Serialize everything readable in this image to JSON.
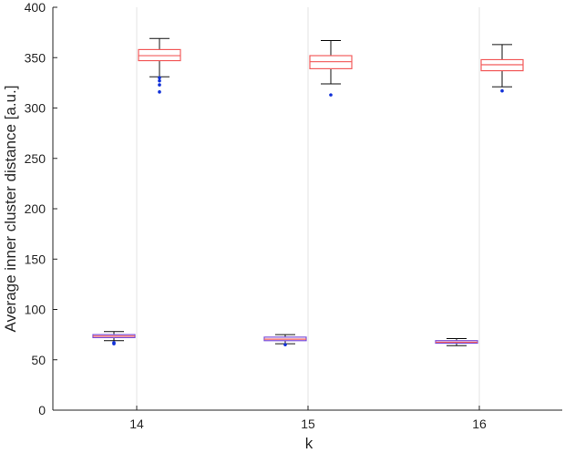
{
  "chart_data": {
    "type": "box",
    "title": "",
    "xlabel": "k",
    "ylabel": "Average inner cluster distance [a.u.]",
    "ylim": [
      0,
      400
    ],
    "yticks": [
      0,
      50,
      100,
      150,
      200,
      250,
      300,
      350,
      400
    ],
    "categories": [
      "14",
      "15",
      "16"
    ],
    "grid": "vertical lines at categories",
    "series": [
      {
        "color": "#7b4dd6",
        "boxes": [
          {
            "category": "14",
            "whisker_low": 69,
            "q1": 72,
            "median": 73.5,
            "q3": 75,
            "whisker_high": 78,
            "outliers": [
              66,
              67
            ]
          },
          {
            "category": "15",
            "whisker_low": 66,
            "q1": 69,
            "median": 70.5,
            "q3": 72.5,
            "whisker_high": 75,
            "outliers": [
              65
            ]
          },
          {
            "category": "16",
            "whisker_low": 64,
            "q1": 66.5,
            "median": 67.5,
            "q3": 69,
            "whisker_high": 71,
            "outliers": []
          }
        ]
      },
      {
        "color": "#f25c5c",
        "boxes": [
          {
            "category": "14",
            "whisker_low": 331,
            "q1": 347,
            "median": 352,
            "q3": 358,
            "whisker_high": 369,
            "outliers": [
              316,
              323,
              327,
              330
            ]
          },
          {
            "category": "15",
            "whisker_low": 324,
            "q1": 339,
            "median": 346,
            "q3": 352,
            "whisker_high": 367,
            "outliers": [
              313
            ]
          },
          {
            "category": "16",
            "whisker_low": 321,
            "q1": 337,
            "median": 343,
            "q3": 348,
            "whisker_high": 363,
            "outliers": [
              317
            ]
          }
        ]
      }
    ]
  }
}
